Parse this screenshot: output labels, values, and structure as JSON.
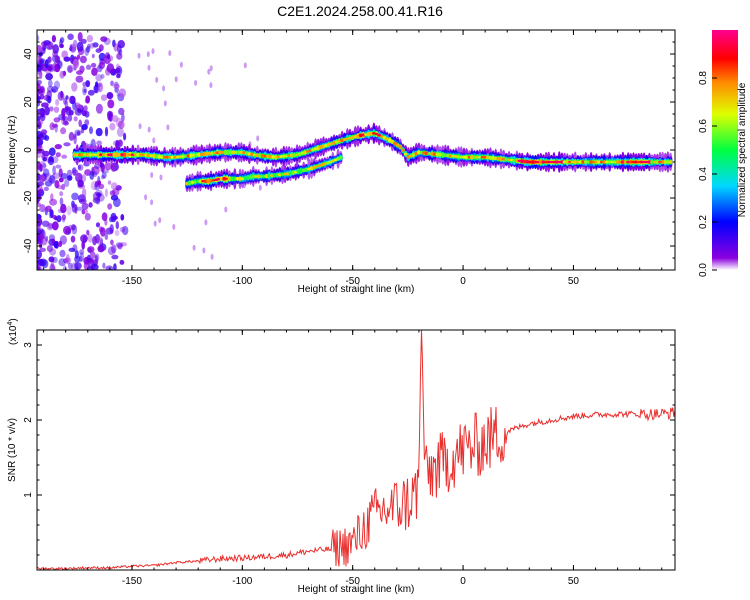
{
  "title": "C2E1.2024.258.00.41.R16",
  "chart_data": [
    {
      "type": "heatmap",
      "subtype": "spectrogram",
      "xlabel": "Height of straight line (km)",
      "ylabel": "Frequency (Hz)",
      "xlim": [
        -193,
        96
      ],
      "ylim": [
        -50,
        50
      ],
      "xticks": [
        -150,
        -100,
        -50,
        0,
        50
      ],
      "yticks": [
        -40,
        -20,
        0,
        20,
        40
      ],
      "colorbar": {
        "label": "Normalized spectral amplitude",
        "range": [
          0,
          1
        ],
        "ticks": [
          "0.0",
          "0.2",
          "0.4",
          "0.6",
          "0.8"
        ],
        "colors": [
          "#ffffff",
          "#8a00e0",
          "#0000ff",
          "#00d8ff",
          "#00ff40",
          "#e0ff00",
          "#ff8c00",
          "#ff0000",
          "#ff0090"
        ]
      },
      "ridge": {
        "x": [
          -176,
          -165,
          -155,
          -145,
          -135,
          -130,
          -120,
          -110,
          -100,
          -95,
          -85,
          -75,
          -65,
          -55,
          -47,
          -40,
          -33,
          -28,
          -25,
          -20,
          -10,
          0,
          10,
          20,
          30,
          40,
          50,
          60,
          70,
          80,
          90
        ],
        "y": [
          -2,
          -2,
          -2,
          -2,
          -3,
          -3,
          -2,
          -1,
          -1,
          -2,
          -3,
          -2,
          1,
          4,
          6,
          7,
          4,
          1,
          -3,
          -1,
          -2,
          -3,
          -3,
          -4,
          -5,
          -5,
          -5,
          -5,
          -5,
          -5,
          -5
        ]
      },
      "lower_branch": {
        "x": [
          -125,
          -120,
          -115,
          -110,
          -105,
          -100,
          -95,
          -90,
          -80,
          -70,
          -60,
          -55
        ],
        "y": [
          -14,
          -13,
          -13,
          -12,
          -12,
          -12,
          -11,
          -11,
          -10,
          -8,
          -5,
          -3
        ]
      }
    },
    {
      "type": "line",
      "xlabel": "Height of straight line (km)",
      "ylabel": "SNR (10 * v/v)",
      "y_multiplier": "(x10",
      "y_multiplier_exp": "4",
      "y_multiplier_close": ")",
      "xlim": [
        -193,
        96
      ],
      "ylim": [
        0,
        3.2
      ],
      "xticks": [
        -150,
        -100,
        -50,
        0,
        50
      ],
      "yticks": [
        1,
        2,
        3
      ],
      "series": [
        {
          "color": "#e8312f",
          "x": [
            -193,
            -180,
            -170,
            -160,
            -150,
            -140,
            -130,
            -120,
            -110,
            -100,
            -90,
            -80,
            -70,
            -60,
            -50,
            -45,
            -40,
            -35,
            -30,
            -25,
            -22,
            -20,
            -19,
            -17,
            -15,
            -10,
            -5,
            0,
            5,
            10,
            15,
            20,
            25,
            30,
            40,
            50,
            60,
            70,
            80,
            90,
            96
          ],
          "y": [
            0.02,
            0.02,
            0.03,
            0.03,
            0.05,
            0.06,
            0.1,
            0.12,
            0.15,
            0.16,
            0.18,
            0.2,
            0.25,
            0.28,
            0.35,
            0.55,
            0.75,
            0.8,
            0.85,
            0.9,
            1.0,
            1.1,
            3.2,
            1.2,
            1.3,
            1.4,
            1.5,
            1.6,
            1.65,
            1.7,
            1.8,
            1.85,
            1.9,
            1.95,
            2.0,
            2.05,
            2.07,
            2.08,
            2.08,
            2.08,
            2.1
          ]
        }
      ]
    }
  ]
}
